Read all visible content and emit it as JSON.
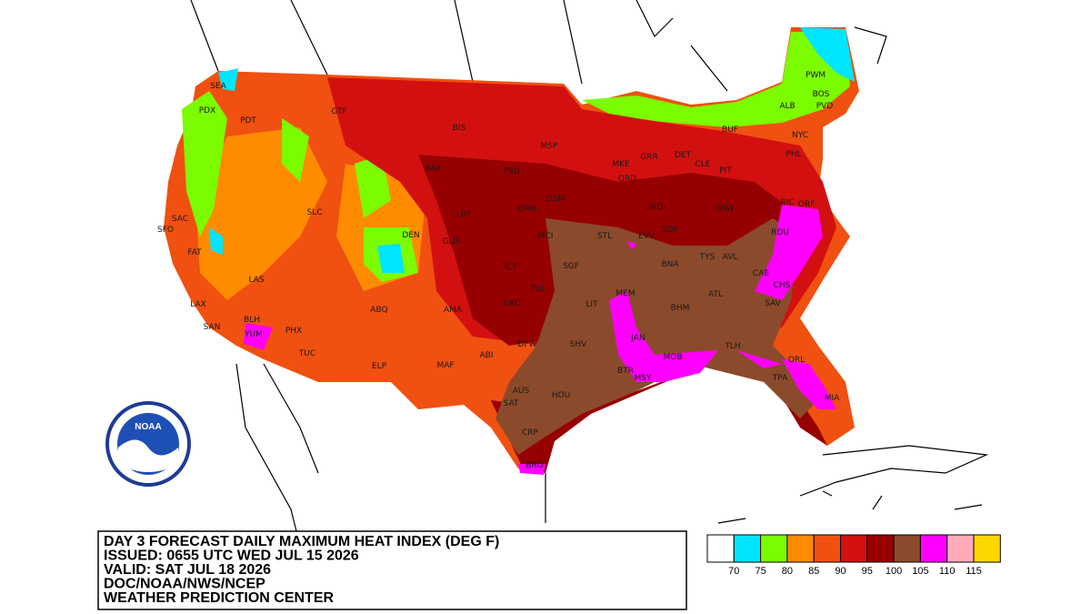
{
  "header": {
    "lines": [
      "DAY 3 FORECAST DAILY MAXIMUM HEAT INDEX (DEG F)",
      "ISSUED: 0655 UTC WED JUL 15 2026",
      "VALID: SAT JUL 18 2026",
      "DOC/NOAA/NWS/NCEP",
      "WEATHER PREDICTION CENTER"
    ]
  },
  "logo": {
    "text": "NOAA"
  },
  "legend": {
    "colors": [
      "#ffffff",
      "#00e5ff",
      "#7cfc00",
      "#ff8c00",
      "#f05010",
      "#d21010",
      "#960000",
      "#8b4a2b",
      "#ff00ff",
      "#ffaabb",
      "#ffd700"
    ],
    "labels": [
      70,
      75,
      80,
      85,
      90,
      95,
      100,
      105,
      110,
      115
    ]
  },
  "stations": [
    "SEA",
    "PDX",
    "PDT",
    "GTF",
    "BIS",
    "MSP",
    "RAP",
    "FSD",
    "MKE",
    "GRR",
    "DET",
    "CLE",
    "PIT",
    "BUF",
    "ALB",
    "PWM",
    "BOS",
    "PVD",
    "NYC",
    "PHL",
    "ORD",
    "DSM",
    "OMA",
    "LBF",
    "SLC",
    "SAC",
    "SFO",
    "DEN",
    "GLD",
    "MCI",
    "STL",
    "IND",
    "RIC",
    "ORF",
    "RDU",
    "CRW",
    "SDF",
    "EVV",
    "BNA",
    "TYS",
    "AVL",
    "CAE",
    "CHS",
    "SAV",
    "ATL",
    "BHM",
    "MEM",
    "LIT",
    "SGF",
    "ICT",
    "OKC",
    "TUL",
    "AMA",
    "ABQ",
    "FAT",
    "LAS",
    "LAX",
    "SAN",
    "BLH",
    "YUM",
    "PHX",
    "TUC",
    "ELP",
    "MAF",
    "ABI",
    "DFW",
    "SHV",
    "JAN",
    "MOB",
    "TLH",
    "BTR",
    "MSY",
    "HOU",
    "AUS",
    "SAT",
    "CRP",
    "BRO",
    "ORL",
    "TPA",
    "MIA"
  ]
}
